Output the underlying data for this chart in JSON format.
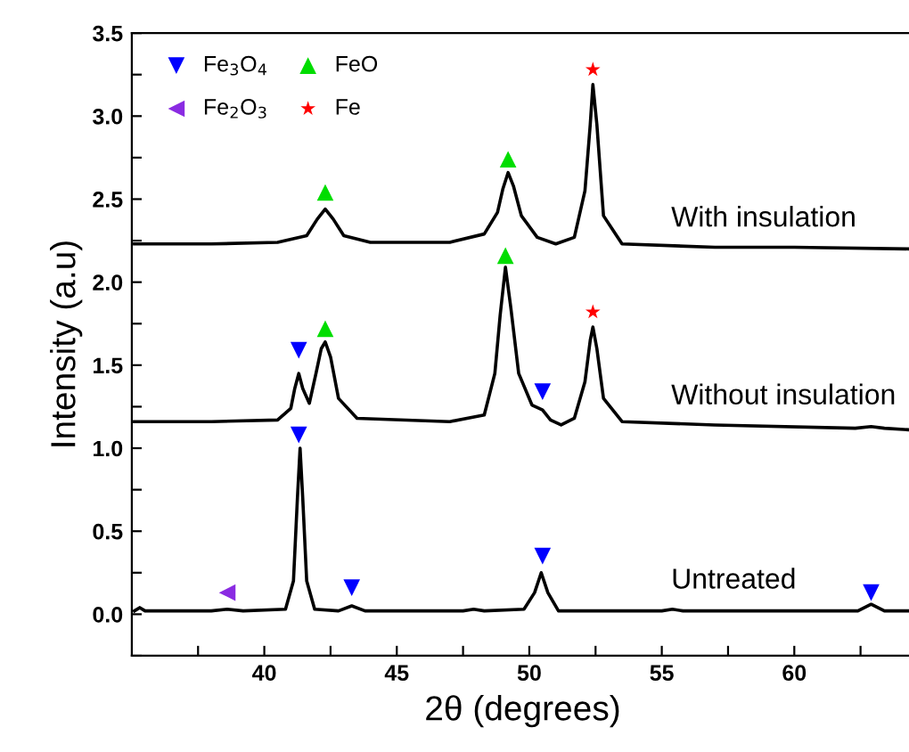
{
  "chart_data": {
    "type": "line",
    "xlabel": "2θ (degrees)",
    "ylabel": "Intensity (a.u)",
    "xlim": [
      35,
      64.5
    ],
    "ylim": [
      -0.25,
      3.5
    ],
    "xticks": [
      {
        "value": 37.5,
        "label": null
      },
      40,
      {
        "value": 42.5,
        "label": null
      },
      45,
      {
        "value": 47.5,
        "label": null
      },
      50,
      {
        "value": 52.5,
        "label": null
      },
      55,
      {
        "value": 57.5,
        "label": null
      },
      60,
      {
        "value": 62.5,
        "label": null
      }
    ],
    "yticks": [
      {
        "value": -0.25,
        "label": null
      },
      {
        "value": 0,
        "label": "0.0"
      },
      {
        "value": 0.25,
        "label": null
      },
      0.5,
      {
        "value": 0.75,
        "label": null
      },
      {
        "value": 1,
        "label": "1.0"
      },
      {
        "value": 1.25,
        "label": null
      },
      1.5,
      {
        "value": 1.75,
        "label": null
      },
      {
        "value": 2,
        "label": "2.0"
      },
      {
        "value": 2.25,
        "label": null
      },
      2.5,
      {
        "value": 2.75,
        "label": null
      },
      {
        "value": 3,
        "label": "3.0"
      },
      {
        "value": 3.25,
        "label": null
      },
      3.5
    ],
    "grid": false,
    "legend": "top left",
    "series": [
      {
        "type": "line",
        "name": "With insulation",
        "color": "#000000",
        "x": [
          35.1,
          38,
          40.5,
          41.6,
          42.0,
          42.3,
          42.6,
          43.0,
          44,
          47,
          48.3,
          48.8,
          49.0,
          49.2,
          49.4,
          49.7,
          50.3,
          51.0,
          51.7,
          52.1,
          52.3,
          52.4,
          52.55,
          52.8,
          53.5,
          57,
          60,
          64.4
        ],
        "values": [
          2.23,
          2.23,
          2.24,
          2.28,
          2.38,
          2.44,
          2.38,
          2.28,
          2.24,
          2.24,
          2.29,
          2.42,
          2.56,
          2.66,
          2.58,
          2.4,
          2.27,
          2.23,
          2.27,
          2.55,
          2.95,
          3.19,
          2.95,
          2.4,
          2.23,
          2.21,
          2.21,
          2.2
        ]
      },
      {
        "type": "line",
        "name": "Without insulation",
        "color": "#000000",
        "x": [
          35.1,
          38,
          40.5,
          41.0,
          41.15,
          41.3,
          41.45,
          41.7,
          41.95,
          42.15,
          42.3,
          42.5,
          42.8,
          43.5,
          47,
          48.3,
          48.7,
          48.9,
          49.1,
          49.3,
          49.6,
          50.1,
          50.5,
          50.8,
          51.2,
          51.7,
          52.1,
          52.3,
          52.4,
          52.55,
          52.8,
          53.5,
          57,
          62.3,
          62.9,
          63.4,
          64.4
        ],
        "values": [
          1.16,
          1.16,
          1.17,
          1.24,
          1.36,
          1.45,
          1.36,
          1.27,
          1.45,
          1.6,
          1.64,
          1.55,
          1.3,
          1.18,
          1.16,
          1.2,
          1.45,
          1.8,
          2.09,
          1.85,
          1.45,
          1.26,
          1.23,
          1.17,
          1.14,
          1.18,
          1.4,
          1.65,
          1.73,
          1.6,
          1.3,
          1.16,
          1.14,
          1.12,
          1.13,
          1.12,
          1.11
        ]
      },
      {
        "type": "line",
        "name": "Untreated",
        "color": "#000000",
        "x": [
          35.1,
          35.3,
          35.5,
          38,
          38.6,
          39.2,
          40.8,
          41.1,
          41.25,
          41.35,
          41.45,
          41.6,
          41.9,
          42.8,
          43.3,
          43.8,
          47.5,
          47.9,
          48.3,
          49.8,
          50.2,
          50.45,
          50.7,
          51.1,
          55,
          55.4,
          55.8,
          62.4,
          62.9,
          63.4,
          64.4
        ],
        "values": [
          0.02,
          0.04,
          0.02,
          0.02,
          0.03,
          0.02,
          0.03,
          0.2,
          0.7,
          1.0,
          0.7,
          0.2,
          0.03,
          0.02,
          0.05,
          0.02,
          0.02,
          0.03,
          0.02,
          0.03,
          0.13,
          0.25,
          0.13,
          0.02,
          0.02,
          0.03,
          0.02,
          0.02,
          0.06,
          0.02,
          0.02
        ]
      },
      {
        "type": "scatter",
        "name": "Fe$_{3}$O$_{4}$",
        "color": "#0000ff",
        "marker": "triangle-down",
        "x": [
          41.3,
          50.5,
          41.3,
          43.3,
          50.5,
          62.9
        ],
        "values": [
          1.59,
          1.34,
          1.08,
          0.16,
          0.35,
          0.13
        ]
      },
      {
        "type": "scatter",
        "name": "FeO",
        "color": "#00dd00",
        "marker": "triangle",
        "x": [
          42.3,
          49.2,
          42.3,
          49.1
        ],
        "values": [
          2.54,
          2.74,
          1.72,
          2.16
        ]
      },
      {
        "type": "scatter",
        "name": "Fe$_{2}$O$_{3}$",
        "color": "#8a2be2",
        "marker": "triangle-left",
        "x": [
          38.6
        ],
        "values": [
          0.13
        ]
      },
      {
        "type": "scatter",
        "name": "Fe",
        "color": "#ff0000",
        "marker": "star",
        "x": [
          52.4,
          52.4
        ],
        "values": [
          3.28,
          1.82
        ]
      }
    ]
  }
}
